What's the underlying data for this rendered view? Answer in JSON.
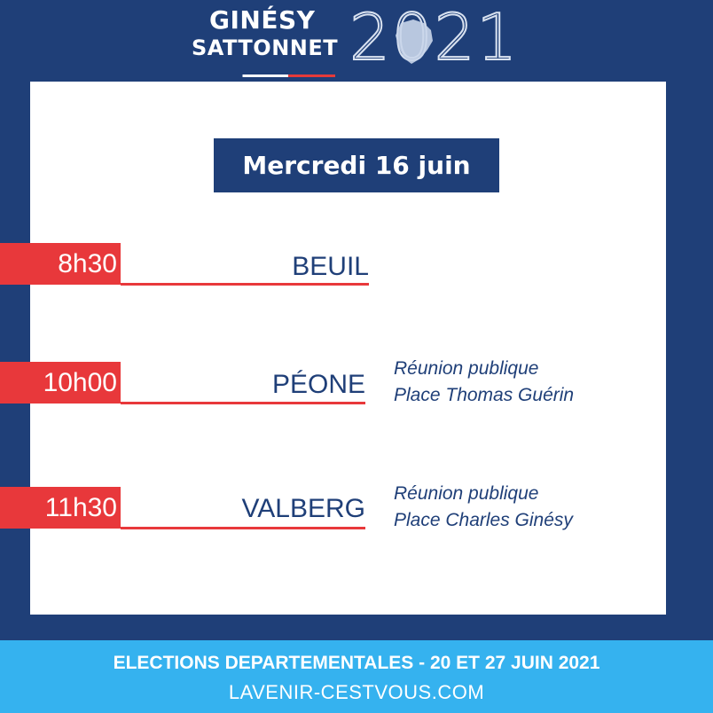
{
  "header": {
    "name_line1": "GINÉSY",
    "name_line2": "SATTONNET",
    "year": "2021"
  },
  "card": {
    "date": "Mercredi 16 juin"
  },
  "schedule": [
    {
      "time": "8h30",
      "place": "BEUIL",
      "desc_line1": "",
      "desc_line2": ""
    },
    {
      "time": "10h00",
      "place": "PÉONE",
      "desc_line1": "Réunion publique",
      "desc_line2": "Place Thomas Guérin"
    },
    {
      "time": "11h30",
      "place": "VALBERG",
      "desc_line1": "Réunion publique",
      "desc_line2": "Place Charles Ginésy"
    }
  ],
  "footer": {
    "title": "ELECTIONS DEPARTEMENTALES - 20 ET 27 JUIN 2021",
    "url": "LAVENIR-CESTVOUS.COM"
  },
  "colors": {
    "navy": "#1f3f78",
    "red": "#e8383b",
    "sky": "#35b2ef",
    "white": "#ffffff"
  }
}
